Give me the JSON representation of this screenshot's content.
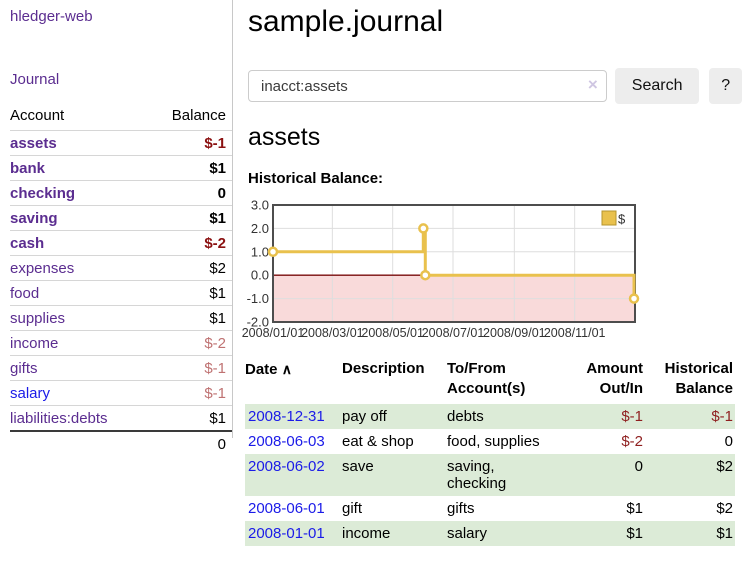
{
  "sidebar": {
    "brand": "hledger-web",
    "journal_link": "Journal",
    "accounts_header": {
      "account": "Account",
      "balance": "Balance"
    },
    "accounts": [
      {
        "name": "assets",
        "level": 1,
        "bold": true,
        "balance": "$-1",
        "neg": "strong"
      },
      {
        "name": "bank",
        "level": 2,
        "bold": true,
        "balance": "$1"
      },
      {
        "name": "checking",
        "level": 3,
        "bold": true,
        "balance": "0"
      },
      {
        "name": "saving",
        "level": 3,
        "bold": true,
        "balance": "$1"
      },
      {
        "name": "cash",
        "level": 2,
        "bold": true,
        "balance": "$-2",
        "neg": "strong"
      },
      {
        "name": "expenses",
        "level": 1,
        "bold": false,
        "balance": "$2"
      },
      {
        "name": "food",
        "level": 2,
        "bold": false,
        "balance": "$1"
      },
      {
        "name": "supplies",
        "level": 2,
        "bold": false,
        "balance": "$1"
      },
      {
        "name": "income",
        "level": 1,
        "bold": false,
        "balance": "$-2",
        "neg": "soft"
      },
      {
        "name": "gifts",
        "level": 2,
        "bold": false,
        "balance": "$-1",
        "neg": "soft"
      },
      {
        "name": "salary",
        "level": 2,
        "bold": false,
        "balance": "$-1",
        "neg": "soft",
        "link": "blue"
      },
      {
        "name": "liabilities:debts",
        "level": 1,
        "bold": false,
        "balance": "$1"
      }
    ],
    "total": "0"
  },
  "main": {
    "title": "sample.journal",
    "search": {
      "query": "inacct:assets",
      "clear_icon": "×",
      "button_label": "Search",
      "help_label": "?"
    },
    "account_heading": "assets",
    "chart_label": "Historical Balance:",
    "register": {
      "headers": {
        "date": "Date",
        "sort_icon": "∧",
        "description": "Description",
        "tofrom": "To/From Account(s)",
        "amount": "Amount Out/In",
        "balance": "Historical Balance"
      },
      "rows": [
        {
          "date": "2008-12-31",
          "description": "pay off",
          "accounts": "debts",
          "amount": "$-1",
          "amount_negative": true,
          "balance": "$-1",
          "balance_negative": true
        },
        {
          "date": "2008-06-03",
          "description": "eat & shop",
          "accounts": "food, supplies",
          "amount": "$-2",
          "amount_negative": true,
          "balance": "0",
          "balance_negative": false
        },
        {
          "date": "2008-06-02",
          "description": "save",
          "accounts": "saving, checking",
          "amount": "0",
          "amount_negative": false,
          "balance": "$2",
          "balance_negative": false
        },
        {
          "date": "2008-06-01",
          "description": "gift",
          "accounts": "gifts",
          "amount": "$1",
          "amount_negative": false,
          "balance": "$2",
          "balance_negative": false
        },
        {
          "date": "2008-01-01",
          "description": "income",
          "accounts": "salary",
          "amount": "$1",
          "amount_negative": false,
          "balance": "$1",
          "balance_negative": false
        }
      ]
    }
  },
  "chart_data": {
    "type": "line",
    "step": true,
    "title": "Historical Balance:",
    "series": [
      {
        "name": "$",
        "color": "#e9c14d",
        "points": [
          [
            "2008-01-01",
            1
          ],
          [
            "2008-06-01",
            2
          ],
          [
            "2008-06-03",
            0
          ],
          [
            "2008-12-31",
            -1
          ]
        ]
      }
    ],
    "x_domain": [
      "2008-01-01",
      "2009-01-01"
    ],
    "x_ticks": [
      "2008/01/01",
      "2008/03/01",
      "2008/05/01",
      "2008/07/01",
      "2008/09/01",
      "2008/11/01"
    ],
    "y_ticks": [
      "3.0",
      "2.0",
      "1.0",
      "0.0",
      "-1.0",
      "-2.0"
    ],
    "ylim": [
      -2,
      3
    ],
    "grid": true,
    "negative_region_fill": "#f9dada",
    "zero_line_color": "#7a0b0b",
    "legend": {
      "label": "$",
      "position": "top-right"
    }
  },
  "colors": {
    "purple": "#5b2d90",
    "blue": "#1b1be8",
    "neg_strong": "#8b1111",
    "neg_soft": "#bf7272",
    "register_negative": "#8f1f1f",
    "row_green": "#dcebd7",
    "gold": "#e9c14d",
    "pink": "#f9dada",
    "zero_line": "#7a0b0b"
  }
}
